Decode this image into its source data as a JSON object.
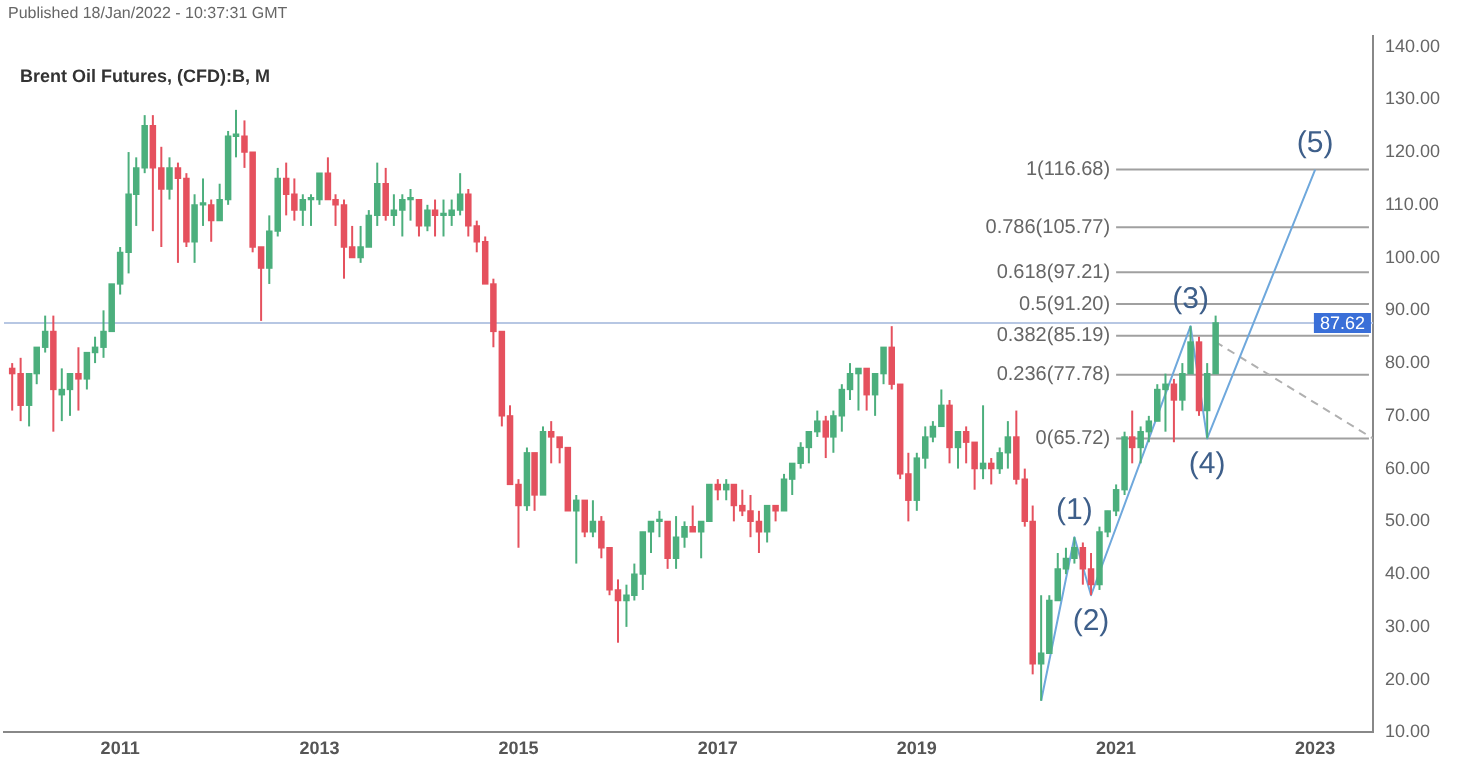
{
  "chart_data": {
    "type": "candlestick",
    "title": "Brent Oil Futures, (CFD):B, M",
    "annotations": [
      "Published 18/Jan/2022 - 10:37:31 GMT",
      {
        "text": "(1)",
        "x": "2020-08",
        "y": 47
      },
      {
        "text": "(2)",
        "x": "2020-10",
        "y": 36
      },
      {
        "text": "(3)",
        "x": "2021-10",
        "y": 87
      },
      {
        "text": "(4)",
        "x": "2021-12",
        "y": 65.72
      },
      {
        "text": "(5)",
        "x": "2023-01",
        "y": 116.68
      }
    ],
    "xlim": [
      "2009-11",
      "2023-08"
    ],
    "xticks": [
      "2011",
      "2013",
      "2015",
      "2017",
      "2019",
      "2021",
      "2023"
    ],
    "ylim": [
      10,
      142
    ],
    "yticks": [
      {
        "value": 10,
        "label": "10.00"
      },
      {
        "value": 20,
        "label": "20.00"
      },
      {
        "value": 30,
        "label": "30.00"
      },
      {
        "value": 40,
        "label": "40.00"
      },
      {
        "value": 50,
        "label": "50.00"
      },
      {
        "value": 60,
        "label": "60.00"
      },
      {
        "value": 70,
        "label": "70.00"
      },
      {
        "value": 80,
        "label": "80.00"
      },
      {
        "value": 90,
        "label": "90.00"
      },
      {
        "value": 100,
        "label": "100.00"
      },
      {
        "value": 110,
        "label": "110.00"
      },
      {
        "value": 120,
        "label": "120.00"
      },
      {
        "value": 130,
        "label": "130.00"
      },
      {
        "value": 140,
        "label": "140.00"
      }
    ],
    "grid": false,
    "legend": false,
    "ref_lines": [
      {
        "axis": "y",
        "value": 87.62,
        "label": "87.62",
        "color": "#b7c7e3"
      },
      {
        "axis": "y",
        "value": 116.68,
        "label": "1(116.68)",
        "color": "#a0a0a0"
      },
      {
        "axis": "y",
        "value": 105.77,
        "label": "0.786(105.77)",
        "color": "#a0a0a0"
      },
      {
        "axis": "y",
        "value": 97.21,
        "label": "0.618(97.21)",
        "color": "#a0a0a0"
      },
      {
        "axis": "y",
        "value": 91.2,
        "label": "0.5(91.20)",
        "color": "#a0a0a0"
      },
      {
        "axis": "y",
        "value": 85.19,
        "label": "0.382(85.19)",
        "color": "#a0a0a0"
      },
      {
        "axis": "y",
        "value": 77.78,
        "label": "0.236(77.78)",
        "color": "#a0a0a0"
      },
      {
        "axis": "y",
        "value": 65.72,
        "label": "0(65.72)",
        "color": "#a0a0a0"
      }
    ],
    "series": [
      {
        "type": "candlestick",
        "x": [
          "2009-12",
          "2010-01",
          "2010-02",
          "2010-03",
          "2010-04",
          "2010-05",
          "2010-06",
          "2010-07",
          "2010-08",
          "2010-09",
          "2010-10",
          "2010-11",
          "2010-12",
          "2011-01",
          "2011-02",
          "2011-03",
          "2011-04",
          "2011-05",
          "2011-06",
          "2011-07",
          "2011-08",
          "2011-09",
          "2011-10",
          "2011-11",
          "2011-12",
          "2012-01",
          "2012-02",
          "2012-03",
          "2012-04",
          "2012-05",
          "2012-06",
          "2012-07",
          "2012-08",
          "2012-09",
          "2012-10",
          "2012-11",
          "2012-12",
          "2013-01",
          "2013-02",
          "2013-03",
          "2013-04",
          "2013-05",
          "2013-06",
          "2013-07",
          "2013-08",
          "2013-09",
          "2013-10",
          "2013-11",
          "2013-12",
          "2014-01",
          "2014-02",
          "2014-03",
          "2014-04",
          "2014-05",
          "2014-06",
          "2014-07",
          "2014-08",
          "2014-09",
          "2014-10",
          "2014-11",
          "2014-12",
          "2015-01",
          "2015-02",
          "2015-03",
          "2015-04",
          "2015-05",
          "2015-06",
          "2015-07",
          "2015-08",
          "2015-09",
          "2015-10",
          "2015-11",
          "2015-12",
          "2016-01",
          "2016-02",
          "2016-03",
          "2016-04",
          "2016-05",
          "2016-06",
          "2016-07",
          "2016-08",
          "2016-09",
          "2016-10",
          "2016-11",
          "2016-12",
          "2017-01",
          "2017-02",
          "2017-03",
          "2017-04",
          "2017-05",
          "2017-06",
          "2017-07",
          "2017-08",
          "2017-09",
          "2017-10",
          "2017-11",
          "2017-12",
          "2018-01",
          "2018-02",
          "2018-03",
          "2018-04",
          "2018-05",
          "2018-06",
          "2018-07",
          "2018-08",
          "2018-09",
          "2018-10",
          "2018-11",
          "2018-12",
          "2019-01",
          "2019-02",
          "2019-03",
          "2019-04",
          "2019-05",
          "2019-06",
          "2019-07",
          "2019-08",
          "2019-09",
          "2019-10",
          "2019-11",
          "2019-12",
          "2020-01",
          "2020-02",
          "2020-03",
          "2020-04",
          "2020-05",
          "2020-06",
          "2020-07",
          "2020-08",
          "2020-09",
          "2020-10",
          "2020-11",
          "2020-12",
          "2021-01",
          "2021-02",
          "2021-03",
          "2021-04",
          "2021-05",
          "2021-06",
          "2021-07",
          "2021-08",
          "2021-09",
          "2021-10",
          "2021-11",
          "2021-12",
          "2022-01"
        ],
        "ohlc": [
          [
            79,
            80,
            71,
            78
          ],
          [
            78,
            81,
            69,
            72
          ],
          [
            72,
            78,
            68,
            78
          ],
          [
            78,
            83,
            76,
            83
          ],
          [
            83,
            89,
            82,
            86
          ],
          [
            86,
            89,
            67,
            75
          ],
          [
            74,
            79,
            69,
            75
          ],
          [
            75,
            78,
            70,
            78
          ],
          [
            78,
            83,
            71,
            77
          ],
          [
            77,
            82,
            75,
            82
          ],
          [
            82,
            85,
            80,
            83
          ],
          [
            83,
            90,
            81,
            86
          ],
          [
            86,
            95,
            86,
            95
          ],
          [
            95,
            102,
            93,
            101
          ],
          [
            101,
            120,
            97,
            112
          ],
          [
            112,
            119,
            106,
            117
          ],
          [
            117,
            127,
            116,
            125
          ],
          [
            125,
            127,
            105,
            117
          ],
          [
            117,
            121,
            102,
            113
          ],
          [
            113,
            119,
            111,
            117
          ],
          [
            117,
            118,
            99,
            115
          ],
          [
            115,
            116,
            102,
            103
          ],
          [
            103,
            112,
            99,
            110
          ],
          [
            110,
            115,
            106,
            110
          ],
          [
            110,
            111,
            103,
            107
          ],
          [
            107,
            114,
            107,
            111
          ],
          [
            111,
            124,
            110,
            123
          ],
          [
            123,
            128,
            119,
            123
          ],
          [
            123,
            126,
            117,
            120
          ],
          [
            120,
            120,
            101,
            102
          ],
          [
            102,
            102,
            88,
            98
          ],
          [
            98,
            108,
            95,
            105
          ],
          [
            105,
            117,
            104,
            115
          ],
          [
            115,
            118,
            108,
            112
          ],
          [
            112,
            115,
            107,
            109
          ],
          [
            109,
            112,
            106,
            111
          ],
          [
            111,
            112,
            106,
            111
          ],
          [
            111,
            116,
            110,
            116
          ],
          [
            116,
            119,
            111,
            111
          ],
          [
            111,
            112,
            106,
            110
          ],
          [
            110,
            111,
            96,
            102
          ],
          [
            102,
            106,
            100,
            100
          ],
          [
            100,
            106,
            99,
            102
          ],
          [
            102,
            109,
            102,
            108
          ],
          [
            108,
            118,
            106,
            114
          ],
          [
            114,
            117,
            107,
            108
          ],
          [
            108,
            112,
            106,
            109
          ],
          [
            109,
            112,
            104,
            111
          ],
          [
            111,
            113,
            107,
            111
          ],
          [
            111,
            111,
            104,
            106
          ],
          [
            106,
            110,
            105,
            109
          ],
          [
            109,
            111,
            104,
            108
          ],
          [
            108,
            111,
            104,
            108
          ],
          [
            108,
            111,
            106,
            109
          ],
          [
            109,
            116,
            108,
            112
          ],
          [
            112,
            113,
            104,
            106
          ],
          [
            106,
            107,
            101,
            103
          ],
          [
            103,
            104,
            95,
            95
          ],
          [
            95,
            96,
            83,
            86
          ],
          [
            86,
            86,
            68,
            70
          ],
          [
            70,
            72,
            57,
            57
          ],
          [
            57,
            58,
            45,
            53
          ],
          [
            53,
            64,
            52,
            63
          ],
          [
            63,
            63,
            52,
            55
          ],
          [
            55,
            68,
            55,
            67
          ],
          [
            67,
            69,
            61,
            66
          ],
          [
            66,
            66,
            61,
            64
          ],
          [
            64,
            64,
            52,
            52
          ],
          [
            52,
            55,
            42,
            54
          ],
          [
            54,
            54,
            47,
            48
          ],
          [
            48,
            54,
            47,
            50
          ],
          [
            50,
            51,
            43,
            45
          ],
          [
            45,
            45,
            36,
            37
          ],
          [
            37,
            39,
            27,
            35
          ],
          [
            35,
            38,
            30,
            36
          ],
          [
            36,
            42,
            35,
            40
          ],
          [
            40,
            48,
            37,
            48
          ],
          [
            48,
            50,
            44,
            50
          ],
          [
            50,
            52,
            47,
            50
          ],
          [
            50,
            50,
            41,
            43
          ],
          [
            43,
            51,
            41,
            47
          ],
          [
            47,
            50,
            45,
            49
          ],
          [
            49,
            53,
            48,
            48
          ],
          [
            48,
            50,
            43,
            50
          ],
          [
            50,
            57,
            50,
            57
          ],
          [
            57,
            58,
            54,
            56
          ],
          [
            56,
            58,
            54,
            57
          ],
          [
            57,
            57,
            50,
            53
          ],
          [
            53,
            56,
            51,
            52
          ],
          [
            52,
            55,
            47,
            50
          ],
          [
            50,
            52,
            44,
            48
          ],
          [
            48,
            53,
            46,
            53
          ],
          [
            53,
            53,
            50,
            52
          ],
          [
            52,
            59,
            52,
            58
          ],
          [
            58,
            61,
            55,
            61
          ],
          [
            61,
            65,
            60,
            64
          ],
          [
            64,
            67,
            61,
            67
          ],
          [
            67,
            71,
            66,
            69
          ],
          [
            69,
            70,
            62,
            66
          ],
          [
            66,
            71,
            63,
            70
          ],
          [
            70,
            76,
            67,
            75
          ],
          [
            75,
            80,
            73,
            78
          ],
          [
            78,
            79,
            71,
            79
          ],
          [
            79,
            79,
            71,
            74
          ],
          [
            74,
            78,
            70,
            78
          ],
          [
            78,
            83,
            76,
            83
          ],
          [
            83,
            87,
            75,
            76
          ],
          [
            76,
            76,
            58,
            59
          ],
          [
            59,
            63,
            50,
            54
          ],
          [
            54,
            63,
            52,
            62
          ],
          [
            62,
            68,
            60,
            66
          ],
          [
            66,
            69,
            65,
            68
          ],
          [
            68,
            75,
            68,
            72
          ],
          [
            72,
            73,
            61,
            64
          ],
          [
            64,
            67,
            60,
            67
          ],
          [
            67,
            68,
            61,
            65
          ],
          [
            65,
            65,
            56,
            60
          ],
          [
            60,
            72,
            58,
            61
          ],
          [
            61,
            62,
            57,
            60
          ],
          [
            60,
            64,
            59,
            63
          ],
          [
            63,
            69,
            60,
            66
          ],
          [
            66,
            71,
            57,
            58
          ],
          [
            58,
            60,
            49,
            50
          ],
          [
            50,
            53,
            21,
            23
          ],
          [
            23,
            36,
            16,
            25
          ],
          [
            25,
            36,
            25,
            35
          ],
          [
            35,
            44,
            35,
            41
          ],
          [
            41,
            45,
            40,
            43
          ],
          [
            43,
            47,
            42,
            45
          ],
          [
            45,
            46,
            38,
            41
          ],
          [
            41,
            44,
            36,
            38
          ],
          [
            38,
            49,
            37,
            48
          ],
          [
            48,
            52,
            47,
            52
          ],
          [
            52,
            57,
            51,
            56
          ],
          [
            56,
            67,
            55,
            66
          ],
          [
            66,
            71,
            61,
            64
          ],
          [
            64,
            68,
            61,
            67
          ],
          [
            67,
            70,
            65,
            69
          ],
          [
            69,
            76,
            69,
            75
          ],
          [
            75,
            78,
            67,
            76
          ],
          [
            76,
            77,
            65,
            73
          ],
          [
            73,
            80,
            71,
            78
          ],
          [
            78,
            87,
            78,
            84
          ],
          [
            84,
            85,
            70,
            71
          ],
          [
            71,
            80,
            65.72,
            78
          ],
          [
            78,
            89,
            78,
            87.62
          ]
        ],
        "colors": [
          "#e5515e",
          "#e5515e",
          "#4caf7d",
          "#4caf7d",
          "#4caf7d",
          "#e5515e",
          "#4caf7d",
          "#4caf7d",
          "#e5515e",
          "#4caf7d",
          "#4caf7d",
          "#4caf7d",
          "#4caf7d",
          "#4caf7d",
          "#4caf7d",
          "#4caf7d",
          "#4caf7d",
          "#e5515e",
          "#e5515e",
          "#4caf7d",
          "#e5515e",
          "#e5515e",
          "#4caf7d",
          "#4caf7d",
          "#e5515e",
          "#4caf7d",
          "#4caf7d",
          "#4caf7d",
          "#e5515e",
          "#e5515e",
          "#e5515e",
          "#4caf7d",
          "#4caf7d",
          "#e5515e",
          "#e5515e",
          "#4caf7d",
          "#4caf7d",
          "#4caf7d",
          "#e5515e",
          "#e5515e",
          "#e5515e",
          "#e5515e",
          "#4caf7d",
          "#4caf7d",
          "#4caf7d",
          "#e5515e",
          "#4caf7d",
          "#4caf7d",
          "#4caf7d",
          "#e5515e",
          "#4caf7d",
          "#e5515e",
          "#4caf7d",
          "#4caf7d",
          "#4caf7d",
          "#e5515e",
          "#e5515e",
          "#e5515e",
          "#e5515e",
          "#e5515e",
          "#e5515e",
          "#e5515e",
          "#4caf7d",
          "#e5515e",
          "#4caf7d",
          "#e5515e",
          "#e5515e",
          "#e5515e",
          "#4caf7d",
          "#e5515e",
          "#4caf7d",
          "#e5515e",
          "#e5515e",
          "#e5515e",
          "#4caf7d",
          "#4caf7d",
          "#4caf7d",
          "#4caf7d",
          "#4caf7d",
          "#e5515e",
          "#4caf7d",
          "#4caf7d",
          "#e5515e",
          "#4caf7d",
          "#4caf7d",
          "#e5515e",
          "#4caf7d",
          "#e5515e",
          "#e5515e",
          "#e5515e",
          "#e5515e",
          "#4caf7d",
          "#e5515e",
          "#4caf7d",
          "#4caf7d",
          "#4caf7d",
          "#4caf7d",
          "#4caf7d",
          "#e5515e",
          "#4caf7d",
          "#4caf7d",
          "#4caf7d",
          "#4caf7d",
          "#e5515e",
          "#4caf7d",
          "#4caf7d",
          "#e5515e",
          "#e5515e",
          "#e5515e",
          "#4caf7d",
          "#4caf7d",
          "#4caf7d",
          "#4caf7d",
          "#e5515e",
          "#4caf7d",
          "#e5515e",
          "#e5515e",
          "#4caf7d",
          "#e5515e",
          "#4caf7d",
          "#4caf7d",
          "#e5515e",
          "#e5515e",
          "#e5515e",
          "#4caf7d",
          "#4caf7d",
          "#4caf7d",
          "#4caf7d",
          "#4caf7d",
          "#e5515e",
          "#e5515e",
          "#4caf7d",
          "#4caf7d",
          "#4caf7d",
          "#4caf7d",
          "#e5515e",
          "#4caf7d",
          "#4caf7d",
          "#4caf7d",
          "#4caf7d",
          "#e5515e",
          "#4caf7d",
          "#4caf7d",
          "#e5515e",
          "#4caf7d",
          "#4caf7d"
        ]
      },
      {
        "type": "line",
        "color": "#6fa8dc",
        "x": [
          "2020-04",
          "2020-08",
          "2020-10",
          "2021-10",
          "2021-12",
          "2023-01"
        ],
        "values": [
          16,
          47,
          36,
          87,
          65.72,
          116.68
        ]
      },
      {
        "type": "line",
        "color": "#b0b0b0",
        "line_style": "dashed",
        "x": [
          "2022-01",
          "2023-08"
        ],
        "values": [
          84,
          65.72
        ]
      }
    ]
  }
}
